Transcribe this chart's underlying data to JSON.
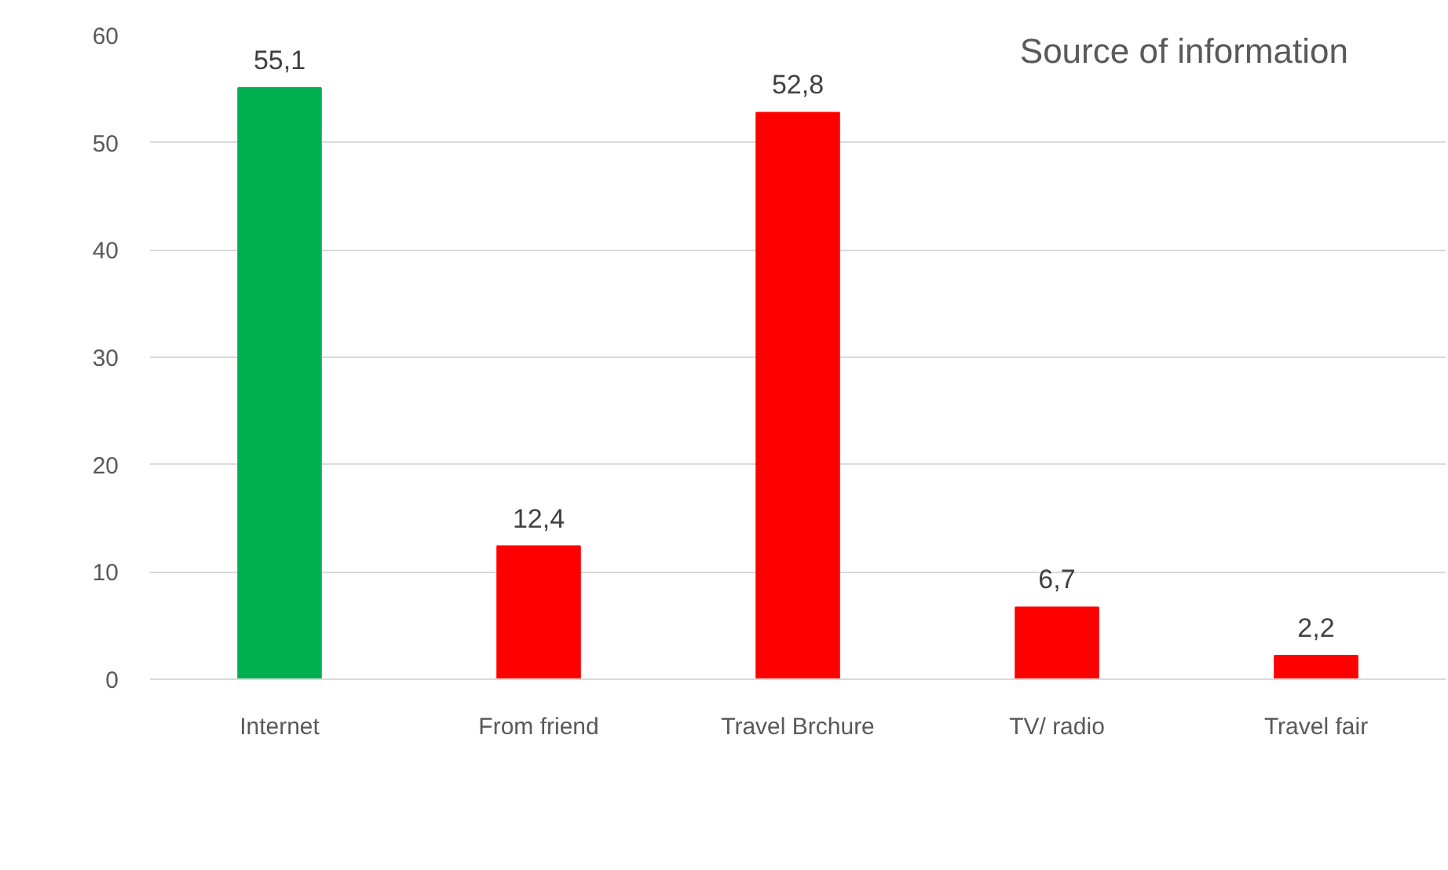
{
  "chart_data": {
    "type": "bar",
    "title": "Source of information",
    "categories": [
      "Internet",
      "From friend",
      "Travel Brchure",
      "TV/ radio",
      "Travel fair"
    ],
    "values": [
      55.1,
      12.4,
      52.8,
      6.7,
      2.2
    ],
    "colors": [
      "#00b050",
      "#ff0000",
      "#ff0000",
      "#ff0000",
      "#ff0000"
    ],
    "value_labels": [
      "55,1",
      "12,4",
      "52,8",
      "6,7",
      "2,2"
    ],
    "ylim": [
      0,
      60
    ],
    "yticks": [
      0,
      10,
      20,
      30,
      40,
      50,
      60
    ],
    "grid": "y"
  }
}
